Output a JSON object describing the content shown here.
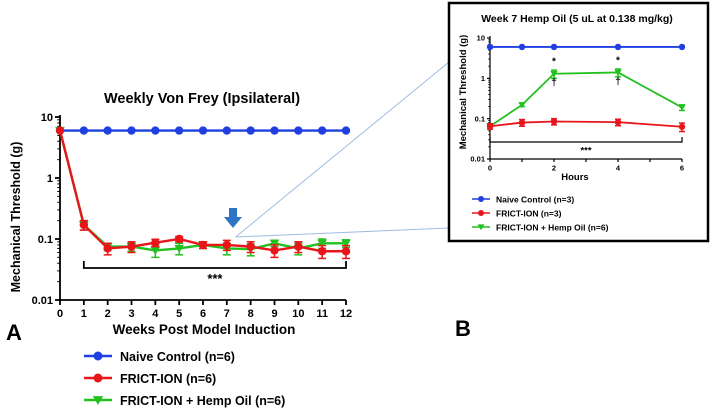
{
  "panel_labels": {
    "a": "A",
    "b": "B"
  },
  "colors": {
    "naive": "#1f3fe0",
    "frict": "#e8161b",
    "hemp": "#22c11f",
    "arrow": "#2e75c8",
    "zoom": "#9dbbe0"
  },
  "legend": [
    {
      "label": "Naive Control (n=6)",
      "series": "naive",
      "marker": "circle"
    },
    {
      "label": "FRICT-ION (n=6)",
      "series": "frict",
      "marker": "circle"
    },
    {
      "label": "FRICT-ION + Hemp Oil (n=6)",
      "series": "hemp",
      "marker": "triangle-down"
    }
  ],
  "inset_legend": [
    {
      "label": "Naive Control (n=3)",
      "series": "naive",
      "marker": "circle"
    },
    {
      "label": "FRICT-ION (n=3)",
      "series": "frict",
      "marker": "circle"
    },
    {
      "label": "FRICT-ION + Hemp Oil (n=6)",
      "series": "hemp",
      "marker": "triangle-down"
    }
  ],
  "chart_data": [
    {
      "id": "A",
      "type": "line",
      "scale": "log",
      "title": "Weekly Von Frey (Ipsilateral)",
      "xlabel": "Weeks  Post Model Induction",
      "ylabel": "Mechanical Threshold (g)",
      "xlim": [
        0,
        12
      ],
      "ylim": [
        0.01,
        10
      ],
      "x": [
        0,
        1,
        2,
        3,
        4,
        5,
        6,
        7,
        8,
        9,
        10,
        11,
        12
      ],
      "x_ticks": [
        "0",
        "1",
        "2",
        "3",
        "4",
        "5",
        "6",
        "7",
        "8",
        "9",
        "10",
        "11",
        "12"
      ],
      "y_ticks": [
        {
          "value": 10,
          "label": "10"
        },
        {
          "value": 1,
          "label": "1"
        },
        {
          "value": 0.1,
          "label": "0.1"
        },
        {
          "value": 0.01,
          "label": "0.01"
        }
      ],
      "series": [
        {
          "key": "naive",
          "name": "Naive Control (n=6)",
          "values": [
            6,
            6,
            6,
            6,
            6,
            6,
            6,
            6,
            6,
            6,
            6,
            6,
            6
          ],
          "errors": [
            0,
            0,
            0,
            0,
            0,
            0,
            0,
            0,
            0,
            0,
            0,
            0,
            0
          ]
        },
        {
          "key": "hemp",
          "name": "FRICT-ION + Hemp Oil (n=6)",
          "values": [
            6,
            0.17,
            0.075,
            0.075,
            0.065,
            0.07,
            0.08,
            0.07,
            0.068,
            0.085,
            0.07,
            0.085,
            0.085
          ],
          "errors": [
            0,
            0.03,
            0.01,
            0.012,
            0.015,
            0.015,
            0.01,
            0.015,
            0.015,
            0.01,
            0.015,
            0.015,
            0.012
          ]
        },
        {
          "key": "frict",
          "name": "FRICT-ION (n=6)",
          "values": [
            6,
            0.17,
            0.07,
            0.075,
            0.087,
            0.1,
            0.08,
            0.08,
            0.075,
            0.065,
            0.075,
            0.063,
            0.063
          ],
          "errors": [
            0,
            0.03,
            0.015,
            0.015,
            0.012,
            0.01,
            0.01,
            0.015,
            0.015,
            0.015,
            0.015,
            0.015,
            0.015
          ]
        }
      ],
      "significance": {
        "label": "***",
        "from": 1,
        "to": 12
      },
      "arrow_at_week": 7.2
    },
    {
      "id": "B",
      "type": "line",
      "scale": "log",
      "title": "Week 7 Hemp Oil  (5 uL at 0.138 mg/kg)",
      "xlabel": "Hours",
      "ylabel": "Mechanical Threshold (g)",
      "xlim": [
        0,
        6
      ],
      "ylim": [
        0.01,
        10
      ],
      "x": [
        0,
        1,
        2,
        4,
        6
      ],
      "x_ticks": [
        "0",
        "2",
        "4",
        "6"
      ],
      "y_ticks": [
        {
          "value": 10,
          "label": "10"
        },
        {
          "value": 1,
          "label": "1"
        },
        {
          "value": 0.1,
          "label": "0.1"
        },
        {
          "value": 0.01,
          "label": "0.01"
        }
      ],
      "series": [
        {
          "key": "naive",
          "name": "Naive Control (n=3)",
          "values": [
            6,
            6,
            6,
            6,
            6
          ],
          "errors": [
            0,
            0,
            0,
            0,
            0
          ]
        },
        {
          "key": "hemp",
          "name": "FRICT-ION + Hemp Oil (n=6)",
          "values": [
            0.065,
            0.22,
            1.3,
            1.4,
            0.19
          ],
          "errors": [
            0.01,
            0.02,
            0.3,
            0.3,
            0.03
          ]
        },
        {
          "key": "frict",
          "name": "FRICT-ION (n=3)",
          "values": [
            0.065,
            0.08,
            0.085,
            0.082,
            0.063
          ],
          "errors": [
            0.01,
            0.015,
            0.015,
            0.015,
            0.015
          ]
        }
      ],
      "significance": {
        "label": "***",
        "from": 0,
        "to": 6
      },
      "point_marks": [
        {
          "x": 2,
          "star": "*",
          "dagger": "†"
        },
        {
          "x": 4,
          "star": "*",
          "dagger": "†"
        }
      ]
    }
  ]
}
